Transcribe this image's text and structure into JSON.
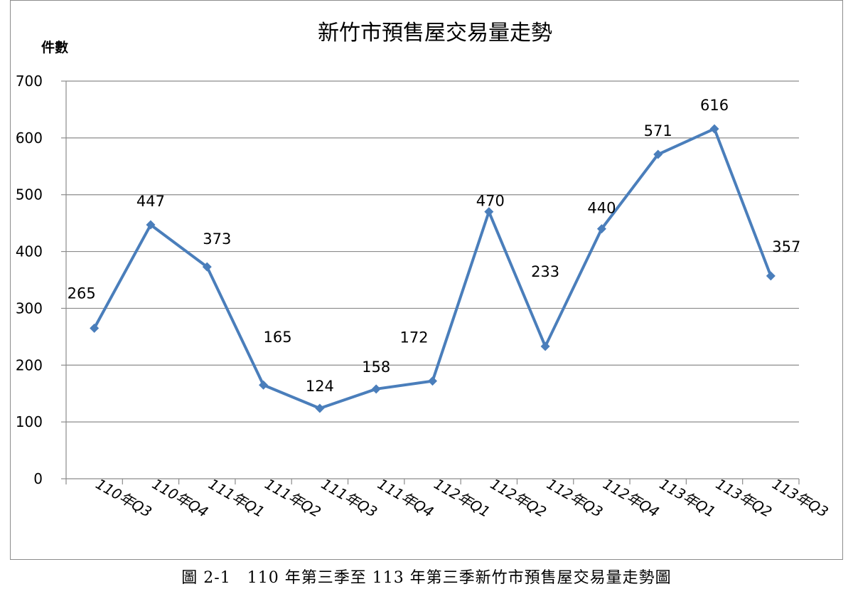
{
  "chart_data": {
    "type": "line",
    "title": "新竹市預售屋交易量走勢",
    "ylabel": "件數",
    "xlabel": "",
    "categories": [
      "110年Q3",
      "110年Q4",
      "111年Q1",
      "111年Q2",
      "111年Q3",
      "111年Q4",
      "112年Q1",
      "112年Q2",
      "112年Q3",
      "112年Q4",
      "113年Q1",
      "113年Q2",
      "113年Q3"
    ],
    "series": [
      {
        "values": [
          265,
          447,
          373,
          165,
          124,
          158,
          172,
          470,
          233,
          440,
          571,
          616,
          357
        ]
      }
    ],
    "ylim": [
      0,
      700
    ],
    "yticks": [
      0,
      100,
      200,
      300,
      400,
      500,
      600,
      700
    ],
    "grid": true,
    "legend": "none",
    "line_color": "#4a7ebb",
    "marker": "diamond"
  },
  "caption": "圖 2-1　110 年第三季至 113 年第三季新竹市預售屋交易量走勢圖"
}
